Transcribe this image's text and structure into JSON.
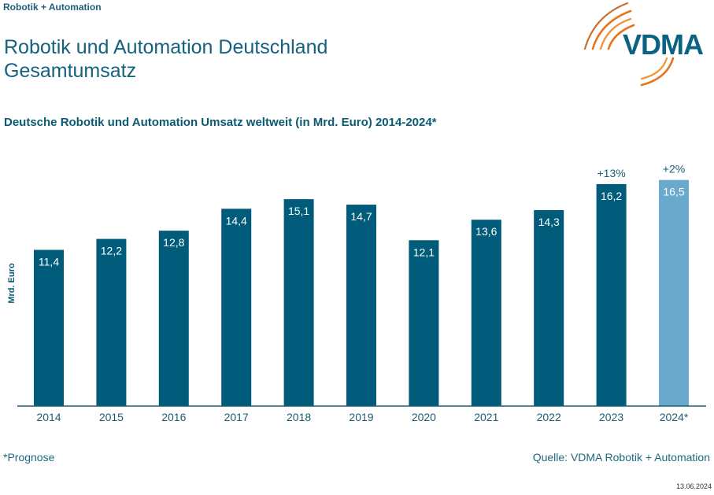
{
  "header": {
    "section_label": "Robotik + Automation",
    "title_line1": "Robotik und Automation Deutschland",
    "title_line2": "Gesamtumsatz",
    "logo_text": "VDMA"
  },
  "colors": {
    "bar_actual": "#005c7a",
    "bar_forecast": "#6aa9cb",
    "axis": "#1b5e74",
    "text_dark": "#0b5a73",
    "logo_orange": "#e8731c",
    "logo_blue": "#0b6383"
  },
  "chart_data": {
    "type": "bar",
    "title": "Deutsche Robotik und Automation Umsatz weltweit (in Mrd. Euro) 2014-2024*",
    "xlabel": "",
    "ylabel": "Mrd. Euro",
    "ylim": [
      0,
      17
    ],
    "grid": false,
    "categories": [
      "2014",
      "2015",
      "2016",
      "2017",
      "2018",
      "2019",
      "2020",
      "2021",
      "2022",
      "2023",
      "2024*"
    ],
    "values": [
      11.4,
      12.2,
      12.8,
      14.4,
      15.1,
      14.7,
      12.1,
      13.6,
      14.3,
      16.2,
      16.5
    ],
    "value_labels": [
      "11,4",
      "12,2",
      "12,8",
      "14,4",
      "15,1",
      "14,7",
      "12,1",
      "13,6",
      "14,3",
      "16,2",
      "16,5"
    ],
    "forecast": [
      false,
      false,
      false,
      false,
      false,
      false,
      false,
      false,
      false,
      false,
      true
    ],
    "annotations": [
      {
        "category": "2023",
        "text": "+13%"
      },
      {
        "category": "2024*",
        "text": "+2%"
      }
    ]
  },
  "footer": {
    "footnote": "*Prognose",
    "source": "Quelle: VDMA Robotik + Automation",
    "date": "13.06.2024"
  }
}
